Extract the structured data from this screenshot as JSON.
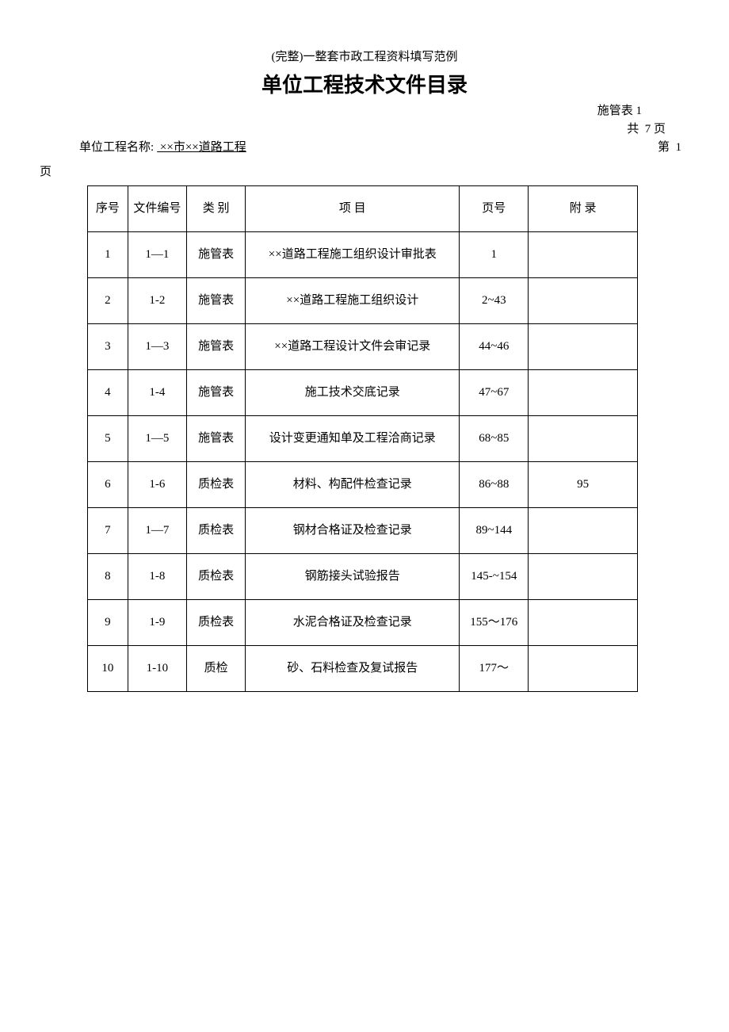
{
  "subtitle": "(完整)一整套市政工程资料填写范例",
  "title": "单位工程技术文件目录",
  "form_label": "施管表 1",
  "page_total_prefix": "共",
  "page_total_value": "7",
  "page_total_suffix": "页",
  "project_label": "单位工程名称:",
  "project_value": " ××市××道路工程 ",
  "page_current_prefix": "第",
  "page_current_value": "1",
  "page_word": "页",
  "table": {
    "headers": {
      "seq": "序号",
      "file_no": "文件编号",
      "category": "类 别",
      "item": "项    目",
      "page_no": "页号",
      "appendix": "附   录"
    },
    "rows": [
      {
        "seq": "1",
        "file_no": "1—1",
        "category": "施管表",
        "item": "××道路工程施工组织设计审批表",
        "page_no": "1",
        "appendix": ""
      },
      {
        "seq": "2",
        "file_no": "1-2",
        "category": "施管表",
        "item": "××道路工程施工组织设计",
        "page_no": "2~43",
        "appendix": ""
      },
      {
        "seq": "3",
        "file_no": "1—3",
        "category": "施管表",
        "item": "××道路工程设计文件会审记录",
        "page_no": "44~46",
        "appendix": ""
      },
      {
        "seq": "4",
        "file_no": "1-4",
        "category": "施管表",
        "item": "施工技术交底记录",
        "page_no": "47~67",
        "appendix": ""
      },
      {
        "seq": "5",
        "file_no": "1—5",
        "category": "施管表",
        "item": "设计变更通知单及工程洽商记录",
        "page_no": "68~85",
        "appendix": ""
      },
      {
        "seq": "6",
        "file_no": "1-6",
        "category": "质检表",
        "item": "材料、构配件检查记录",
        "page_no": "86~88",
        "appendix": "95"
      },
      {
        "seq": "7",
        "file_no": "1—7",
        "category": "质检表",
        "item": "钢材合格证及检查记录",
        "page_no": "89~144",
        "appendix": ""
      },
      {
        "seq": "8",
        "file_no": "1-8",
        "category": "质检表",
        "item": "钢筋接头试验报告",
        "page_no": "145-~154",
        "appendix": ""
      },
      {
        "seq": "9",
        "file_no": "1-9",
        "category": "质检表",
        "item": "水泥合格证及检查记录",
        "page_no": "155～176",
        "appendix": ""
      },
      {
        "seq": "10",
        "file_no": "1-10",
        "category": "质检",
        "item": "砂、石料检查及复试报告",
        "page_no": "177～",
        "appendix": ""
      }
    ]
  }
}
